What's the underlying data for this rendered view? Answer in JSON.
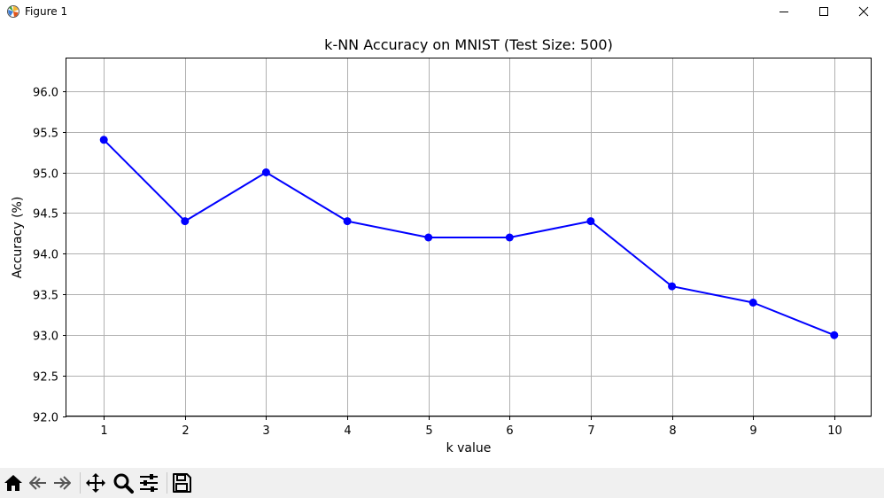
{
  "window": {
    "title": "Figure 1"
  },
  "toolbar": {
    "buttons": [
      {
        "name": "home-icon"
      },
      {
        "name": "back-icon"
      },
      {
        "name": "forward-icon"
      },
      {
        "name": "pan-icon"
      },
      {
        "name": "zoom-icon"
      },
      {
        "name": "configure-subplots-icon"
      },
      {
        "name": "save-icon"
      }
    ]
  },
  "chart_data": {
    "type": "line",
    "title": "k-NN Accuracy on MNIST (Test Size: 500)",
    "xlabel": "k value",
    "ylabel": "Accuracy (%)",
    "x": [
      1,
      2,
      3,
      4,
      5,
      6,
      7,
      8,
      9,
      10
    ],
    "series": [
      {
        "values": [
          95.4,
          94.4,
          95.0,
          94.4,
          94.2,
          94.2,
          94.4,
          93.6,
          93.4,
          93.0
        ],
        "color": "#0000ff",
        "marker": "circle"
      }
    ],
    "xticks": [
      "1",
      "2",
      "3",
      "4",
      "5",
      "6",
      "7",
      "8",
      "9",
      "10"
    ],
    "yticks": [
      "92.0",
      "92.5",
      "93.0",
      "93.5",
      "94.0",
      "94.5",
      "95.0",
      "95.5",
      "96.0"
    ],
    "xlim": [
      0.54,
      10.46
    ],
    "ylim": [
      92.0,
      96.4
    ],
    "grid": true,
    "legend": "none"
  }
}
